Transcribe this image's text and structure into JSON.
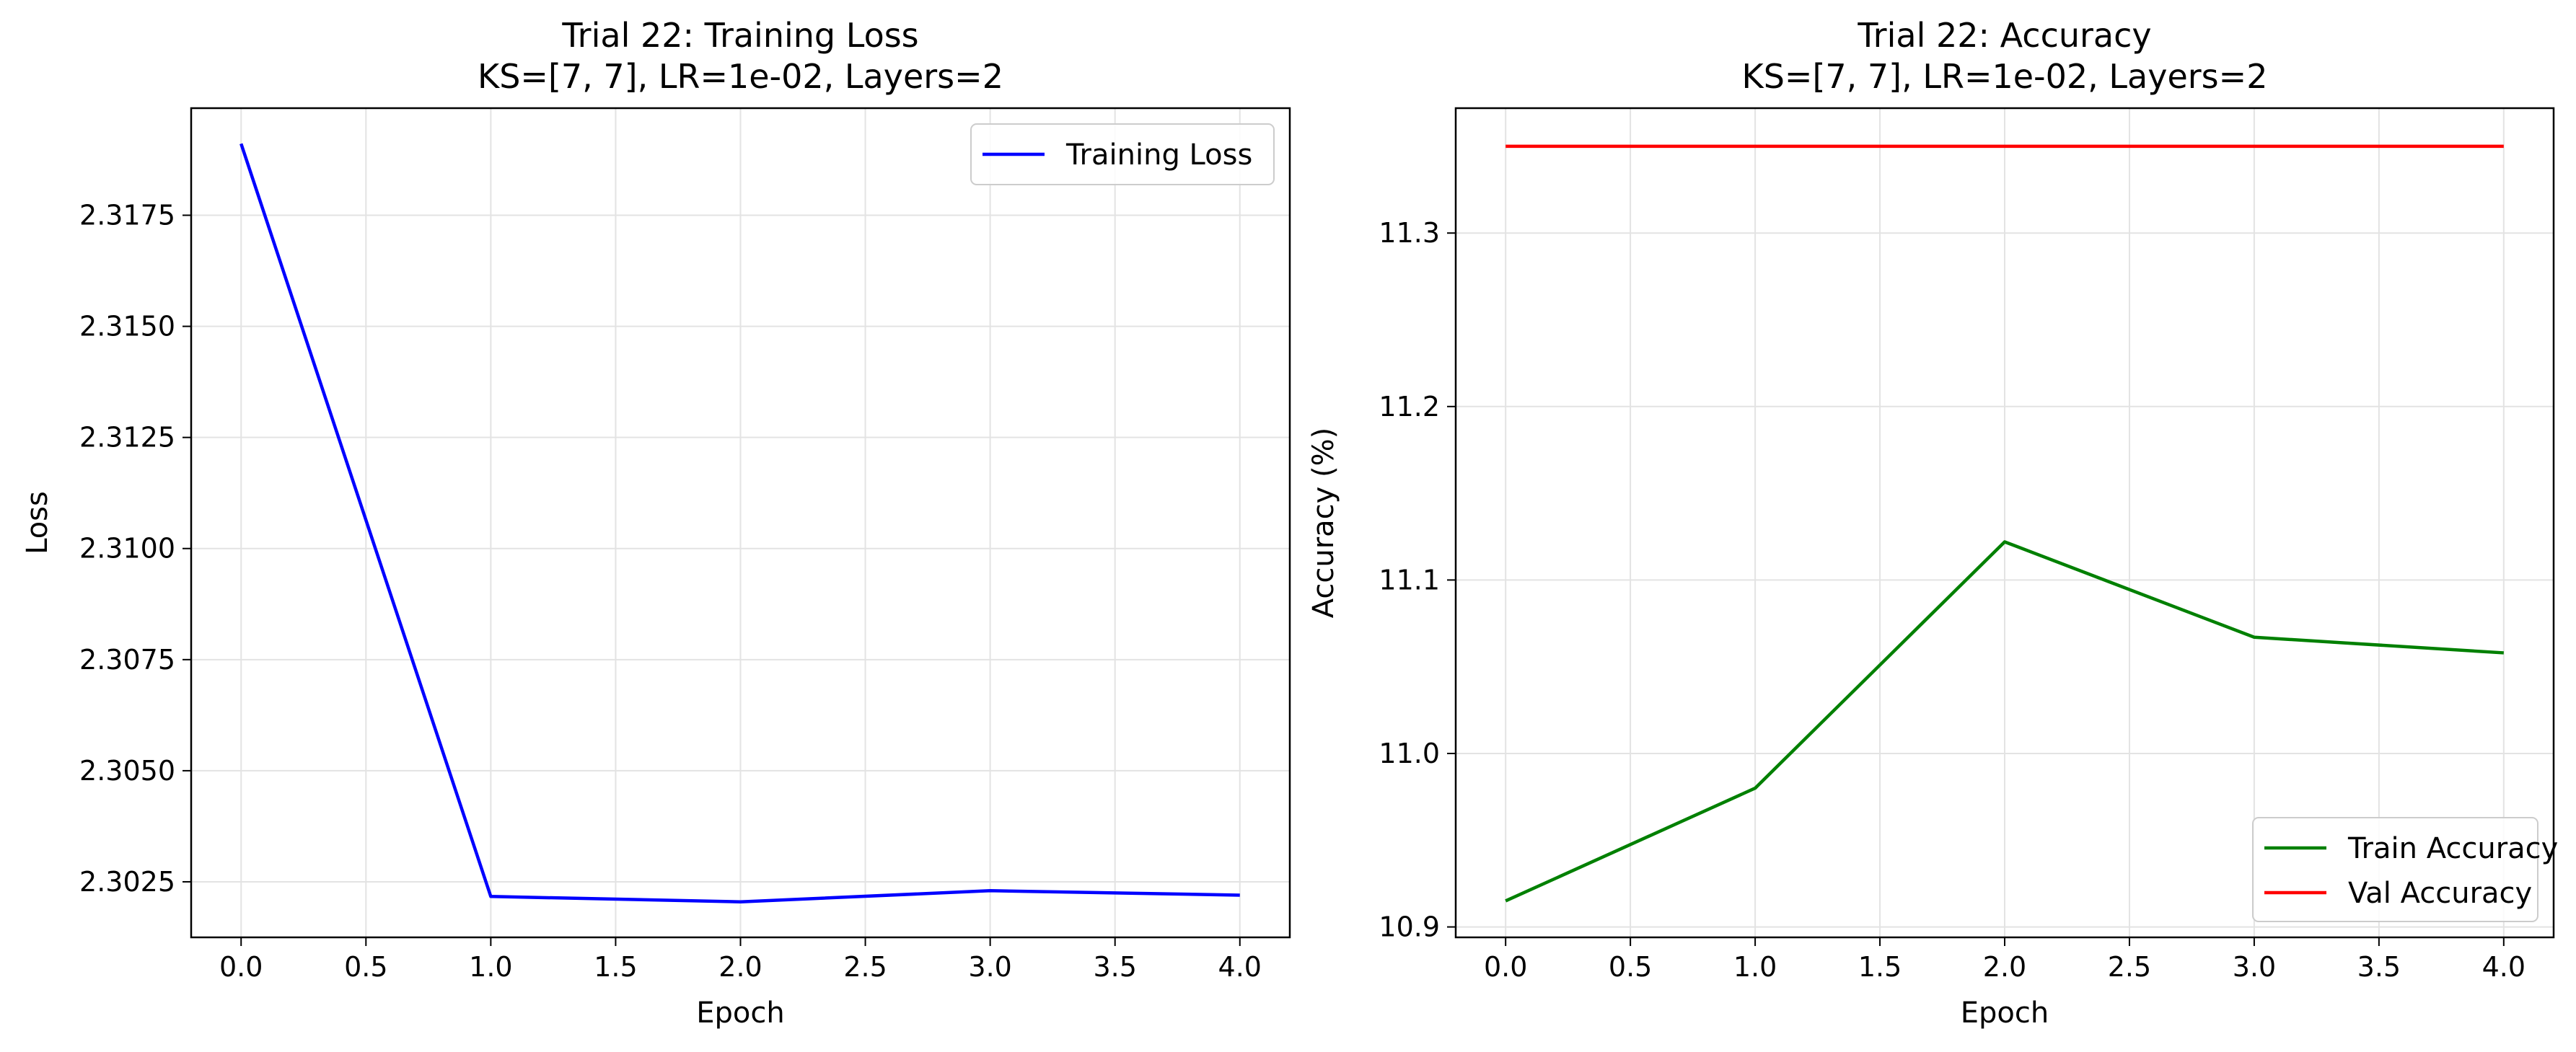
{
  "chart_data": [
    {
      "type": "line",
      "title": "Trial 22: Training Loss",
      "subtitle": "KS=[7, 7], LR=1e-02, Layers=2",
      "xlabel": "Epoch",
      "ylabel": "Loss",
      "xlim": [
        -0.2,
        4.2
      ],
      "ylim": [
        2.30125,
        2.31991
      ],
      "xticks": [
        "0.0",
        "0.5",
        "1.0",
        "1.5",
        "2.0",
        "2.5",
        "3.0",
        "3.5",
        "4.0"
      ],
      "yticks": [
        "2.3025",
        "2.3050",
        "2.3075",
        "2.3100",
        "2.3125",
        "2.3150",
        "2.3175"
      ],
      "grid": true,
      "legend_position": "top-right",
      "x": [
        0,
        1,
        2,
        3,
        4
      ],
      "series": [
        {
          "name": "Training Loss",
          "color": "#0000ff",
          "values": [
            2.31911,
            2.30217,
            2.30205,
            2.3023,
            2.3022
          ]
        }
      ]
    },
    {
      "type": "line",
      "title": "Trial 22: Accuracy",
      "subtitle": "KS=[7, 7], LR=1e-02, Layers=2",
      "xlabel": "Epoch",
      "ylabel": "Accuracy (%)",
      "xlim": [
        -0.2,
        4.2
      ],
      "ylim": [
        10.894,
        11.372
      ],
      "xticks": [
        "0.0",
        "0.5",
        "1.0",
        "1.5",
        "2.0",
        "2.5",
        "3.0",
        "3.5",
        "4.0"
      ],
      "yticks": [
        "10.9",
        "11.0",
        "11.1",
        "11.2",
        "11.3"
      ],
      "grid": true,
      "legend_position": "bottom-right",
      "x": [
        0,
        1,
        2,
        3,
        4
      ],
      "series": [
        {
          "name": "Train Accuracy",
          "color": "#008000",
          "values": [
            10.915,
            10.98,
            11.122,
            11.067,
            11.058
          ]
        },
        {
          "name": "Val Accuracy",
          "color": "#ff0000",
          "values": [
            11.35,
            11.35,
            11.35,
            11.35,
            11.35
          ]
        }
      ]
    }
  ]
}
